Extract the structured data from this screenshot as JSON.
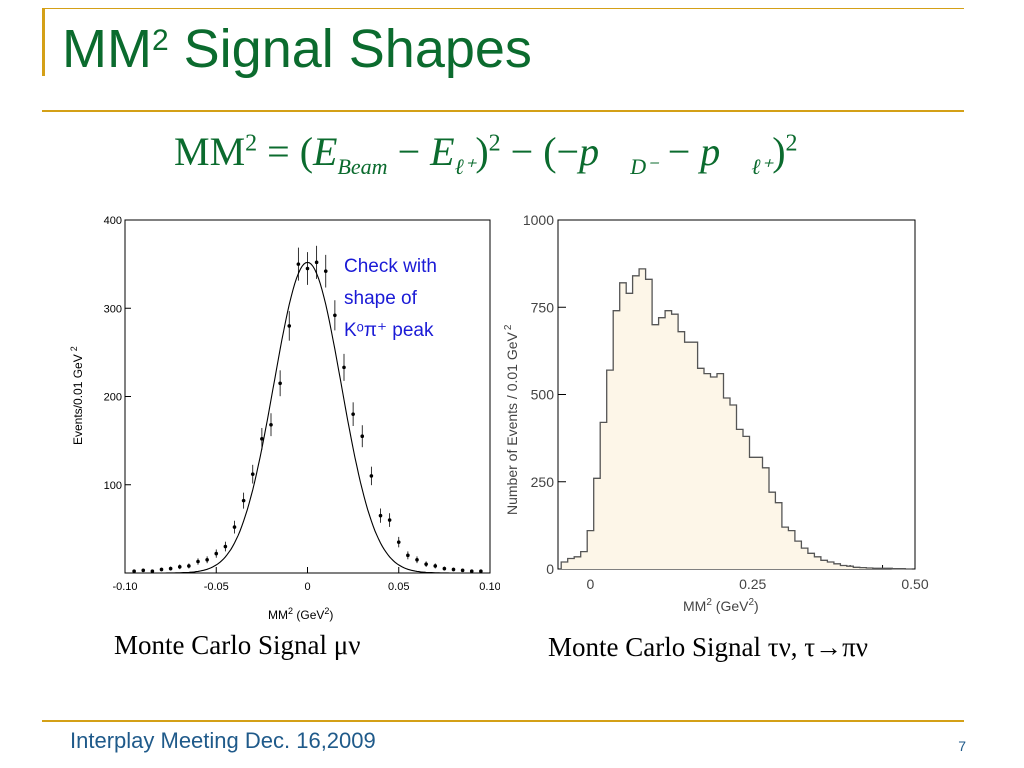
{
  "title": {
    "main": "MM",
    "sup": "2",
    "rest": " Signal Shapes"
  },
  "formula": {
    "lhs": "MM",
    "lhs_sup": "2",
    "eq": " = (",
    "e1": "E",
    "e1_sub": "Beam",
    "minus": " − ",
    "e2": "E",
    "e2_sub": "ℓ⁺",
    "close1": ")",
    "sq1": "2",
    "mid": " − (−",
    "p1": "p⃗",
    "p1_sub": "D⁻",
    "p2": "p⃗",
    "p2_sub": "ℓ⁺",
    "close2": ")",
    "sq2": "2"
  },
  "annotation": [
    "Check with",
    "shape of",
    "Kᵒπ⁺ peak"
  ],
  "captions": {
    "left": "Monte Carlo Signal μν",
    "right": "Monte Carlo Signal τν, τ→πν"
  },
  "footer": {
    "text": "Interplay Meeting Dec. 16,2009",
    "page": "7"
  },
  "colors": {
    "title": "#0b6b2e",
    "accent": "#d4a017",
    "annotation": "#1a1ad6",
    "fill": "#fdf6e8",
    "footer": "#1f5a8a"
  },
  "chart_data": [
    {
      "type": "scatter",
      "xlabel": "MM",
      "xlabel_sup": "2",
      "xlabel_unit": "(GeV",
      "xlabel_unit_sup": "2",
      "xlabel_close": ")",
      "ylabel": "Events/0.01 GeV",
      "ylabel_sup": "2",
      "xlim": [
        -0.1,
        0.1
      ],
      "ylim": [
        0,
        400
      ],
      "xticks": [
        -0.1,
        -0.05,
        0,
        0.05,
        0.1
      ],
      "xtick_labels": [
        "-0.10",
        "-0.05",
        "0",
        "0.05",
        "0.10"
      ],
      "yticks": [
        100,
        200,
        300,
        400
      ],
      "ytick_labels": [
        "100",
        "200",
        "300",
        "400"
      ],
      "points": {
        "x": [
          -0.095,
          -0.09,
          -0.085,
          -0.08,
          -0.075,
          -0.07,
          -0.065,
          -0.06,
          -0.055,
          -0.05,
          -0.045,
          -0.04,
          -0.035,
          -0.03,
          -0.025,
          -0.02,
          -0.015,
          -0.01,
          -0.005,
          0,
          0.005,
          0.01,
          0.015,
          0.02,
          0.025,
          0.03,
          0.035,
          0.04,
          0.045,
          0.05,
          0.055,
          0.06,
          0.065,
          0.07,
          0.075,
          0.08,
          0.085,
          0.09,
          0.095
        ],
        "y": [
          2,
          3,
          2,
          4,
          5,
          7,
          8,
          13,
          15,
          22,
          30,
          52,
          82,
          112,
          152,
          168,
          215,
          280,
          350,
          345,
          352,
          342,
          292,
          233,
          180,
          155,
          110,
          65,
          60,
          35,
          20,
          15,
          10,
          8,
          5,
          4,
          3,
          2,
          2
        ]
      },
      "fit": {
        "amplitude": 352,
        "mean": 0.0,
        "sigma": 0.0185
      },
      "grid": false
    },
    {
      "type": "area",
      "xlabel": "MM",
      "xlabel_sup": "2",
      "xlabel_unit": "(GeV",
      "xlabel_unit_sup": "2",
      "xlabel_close": ")",
      "ylabel": "Number of Events / 0.01 GeV",
      "ylabel_sup": "2",
      "xlim": [
        -0.05,
        0.5
      ],
      "ylim": [
        0,
        1000
      ],
      "xticks": [
        0,
        0.25,
        0.5
      ],
      "xtick_labels": [
        "0",
        "0.25",
        "0.50"
      ],
      "yticks": [
        0,
        250,
        500,
        750,
        1000
      ],
      "ytick_labels": [
        "0",
        "250",
        "500",
        "750",
        "1000"
      ],
      "bin_width": 0.01,
      "x": [
        -0.04,
        -0.03,
        -0.02,
        -0.01,
        0.0,
        0.01,
        0.02,
        0.03,
        0.04,
        0.05,
        0.06,
        0.07,
        0.08,
        0.09,
        0.1,
        0.11,
        0.12,
        0.13,
        0.14,
        0.15,
        0.16,
        0.17,
        0.18,
        0.19,
        0.2,
        0.21,
        0.22,
        0.23,
        0.24,
        0.25,
        0.26,
        0.27,
        0.28,
        0.29,
        0.3,
        0.31,
        0.32,
        0.33,
        0.34,
        0.35,
        0.36,
        0.37,
        0.38,
        0.39,
        0.4,
        0.41,
        0.42,
        0.43,
        0.44,
        0.45,
        0.46,
        0.47,
        0.48,
        0.49
      ],
      "values": [
        20,
        30,
        35,
        50,
        110,
        260,
        420,
        570,
        740,
        820,
        790,
        840,
        860,
        830,
        700,
        720,
        740,
        730,
        680,
        650,
        650,
        575,
        560,
        550,
        560,
        490,
        470,
        400,
        380,
        320,
        320,
        290,
        220,
        190,
        120,
        110,
        80,
        60,
        45,
        35,
        25,
        20,
        15,
        10,
        8,
        5,
        4,
        3,
        2,
        2,
        2,
        1,
        1,
        0
      ],
      "grid": false
    }
  ]
}
